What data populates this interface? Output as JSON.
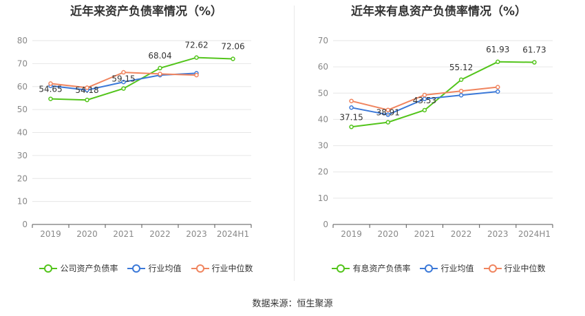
{
  "source_label": "数据来源：恒生聚源",
  "chart_data": [
    {
      "type": "line",
      "title": "近年来资产负债率情况（%）",
      "categories": [
        "2019",
        "2020",
        "2021",
        "2022",
        "2023",
        "2024H1"
      ],
      "ylim": [
        0,
        80
      ],
      "yticks": [
        0,
        10,
        20,
        30,
        40,
        50,
        60,
        70,
        80
      ],
      "grid": true,
      "legend_position": "bottom",
      "series": [
        {
          "name": "公司资产负债率",
          "color": "#52c41a",
          "values": [
            54.65,
            54.18,
            59.15,
            68.04,
            72.62,
            72.06
          ],
          "labels": [
            "54.65",
            "54.18",
            "59.15",
            "68.04",
            "72.62",
            "72.06"
          ]
        },
        {
          "name": "行业均值",
          "color": "#3a78d8",
          "values": [
            60.3,
            58.5,
            62.0,
            65.0,
            65.8,
            null
          ]
        },
        {
          "name": "行业中位数",
          "color": "#f0845e",
          "values": [
            61.3,
            59.5,
            66.2,
            65.5,
            65.0,
            null
          ]
        }
      ]
    },
    {
      "type": "line",
      "title": "近年来有息资产负债率情况（%）",
      "categories": [
        "2019",
        "2020",
        "2021",
        "2022",
        "2023",
        "2024H1"
      ],
      "ylim": [
        0,
        70
      ],
      "yticks": [
        0,
        10,
        20,
        30,
        40,
        50,
        60,
        70
      ],
      "grid": true,
      "legend_position": "bottom",
      "series": [
        {
          "name": "有息资产负债率",
          "color": "#52c41a",
          "values": [
            37.15,
            38.91,
            43.53,
            55.12,
            61.93,
            61.73
          ],
          "labels": [
            "37.15",
            "38.91",
            "43.53",
            "55.12",
            "61.93",
            "61.73"
          ]
        },
        {
          "name": "行业均值",
          "color": "#3a78d8",
          "values": [
            44.5,
            41.8,
            47.8,
            49.2,
            50.6,
            null
          ]
        },
        {
          "name": "行业中位数",
          "color": "#f0845e",
          "values": [
            47.0,
            43.6,
            49.3,
            50.8,
            52.3,
            null
          ]
        }
      ]
    }
  ]
}
